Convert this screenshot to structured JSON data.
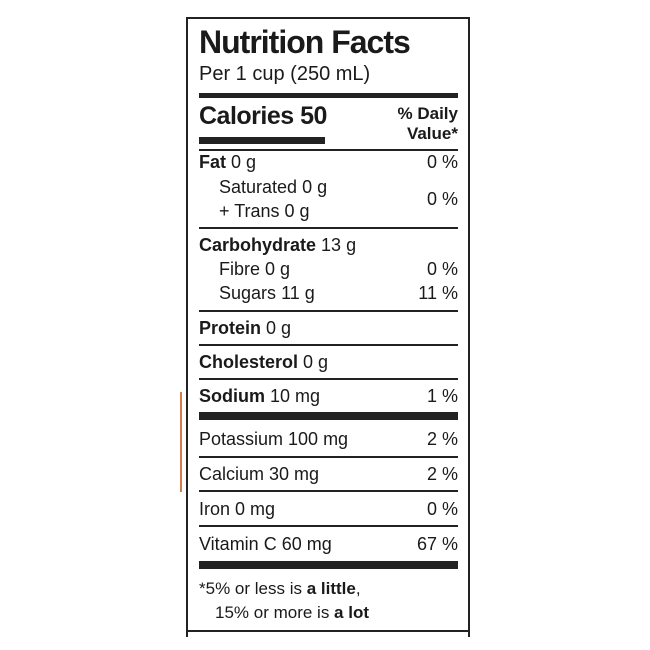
{
  "label": {
    "title": "Nutrition Facts",
    "serving": "Per 1 cup (250 mL)",
    "calories_label": "Calories",
    "calories_value": "50",
    "daily_value_line1": "% Daily",
    "daily_value_line2": "Value*"
  },
  "nutrients": {
    "fat": {
      "name": "Fat",
      "amount": "0 g",
      "dv": "0 %"
    },
    "saturated": {
      "name": "Saturated",
      "amount": "0 g"
    },
    "trans": {
      "name": "+ Trans",
      "amount": "0 g"
    },
    "sat_trans_dv": "0 %",
    "carbohydrate": {
      "name": "Carbohydrate",
      "amount": "13 g"
    },
    "fibre": {
      "name": "Fibre",
      "amount": "0 g",
      "dv": "0 %"
    },
    "sugars": {
      "name": "Sugars",
      "amount": "11 g",
      "dv": "11 %"
    },
    "protein": {
      "name": "Protein",
      "amount": "0 g"
    },
    "cholesterol": {
      "name": "Cholesterol",
      "amount": "0 g"
    },
    "sodium": {
      "name": "Sodium",
      "amount": "10 mg",
      "dv": "1 %"
    },
    "potassium": {
      "label": "Potassium 100 mg",
      "dv": "2 %"
    },
    "calcium": {
      "label": "Calcium 30 mg",
      "dv": "2 %"
    },
    "iron": {
      "label": "Iron 0 mg",
      "dv": "0 %"
    },
    "vitamin_c": {
      "label": "Vitamin C 60 mg",
      "dv": "67 %"
    }
  },
  "footnote": {
    "star": "*",
    "line1_prefix": "5% or less is ",
    "line1_bold": "a little",
    "line1_suffix": ",",
    "line2_prefix": "15% or more is ",
    "line2_bold": "a lot"
  },
  "colors": {
    "accent_line": "#d97a4a",
    "ink": "#1a1a1a"
  }
}
